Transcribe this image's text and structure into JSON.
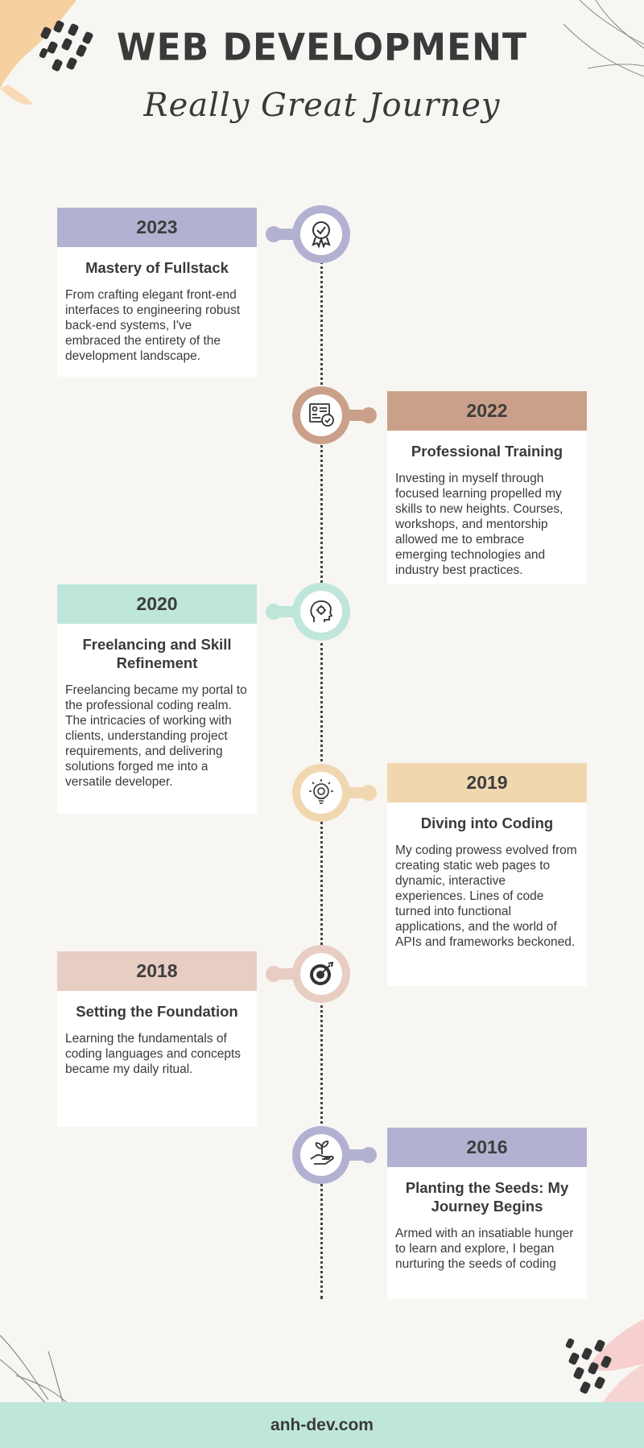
{
  "header": {
    "title": "WEB DEVELOPMENT",
    "subtitle": "Really Great Journey"
  },
  "colors": {
    "purple": "#b2b1d1",
    "tan": "#cba08a",
    "mint": "#bfe6db",
    "peach": "#f1d7b0",
    "blush": "#e8cdc3"
  },
  "timeline": [
    {
      "year": "2023",
      "heading": "Mastery of Fullstack",
      "body": "From crafting elegant front-end interfaces to engineering robust back-end systems, I've embraced the entirety of the development landscape.",
      "icon": "award-badge-icon"
    },
    {
      "year": "2022",
      "heading": "Professional Training",
      "body": "Investing in myself through focused learning propelled my skills to new heights. Courses, workshops, and mentorship allowed me to embrace emerging technologies and industry best practices.",
      "icon": "certificate-icon"
    },
    {
      "year": "2020",
      "heading": "Freelancing and Skill Refinement",
      "body": "Freelancing became my portal to the professional coding realm. The intricacies of working with clients, understanding project requirements, and delivering solutions forged me into a versatile developer.",
      "icon": "head-gear-icon"
    },
    {
      "year": "2019",
      "heading": "Diving into Coding",
      "body": "My coding prowess evolved from creating static web pages to dynamic, interactive experiences. Lines of code turned into functional applications, and the world of APIs and frameworks beckoned.",
      "icon": "lightbulb-gear-icon"
    },
    {
      "year": "2018",
      "heading": "Setting the Foundation",
      "body": "Learning the fundamentals of coding languages and concepts became my daily ritual.",
      "icon": "target-icon"
    },
    {
      "year": "2016",
      "heading": "Planting the Seeds: My Journey Begins",
      "body": "Armed with an insatiable hunger to learn and explore, I began nurturing the seeds of coding",
      "icon": "hand-plant-icon"
    }
  ],
  "footer": {
    "website": "anh-dev.com"
  }
}
